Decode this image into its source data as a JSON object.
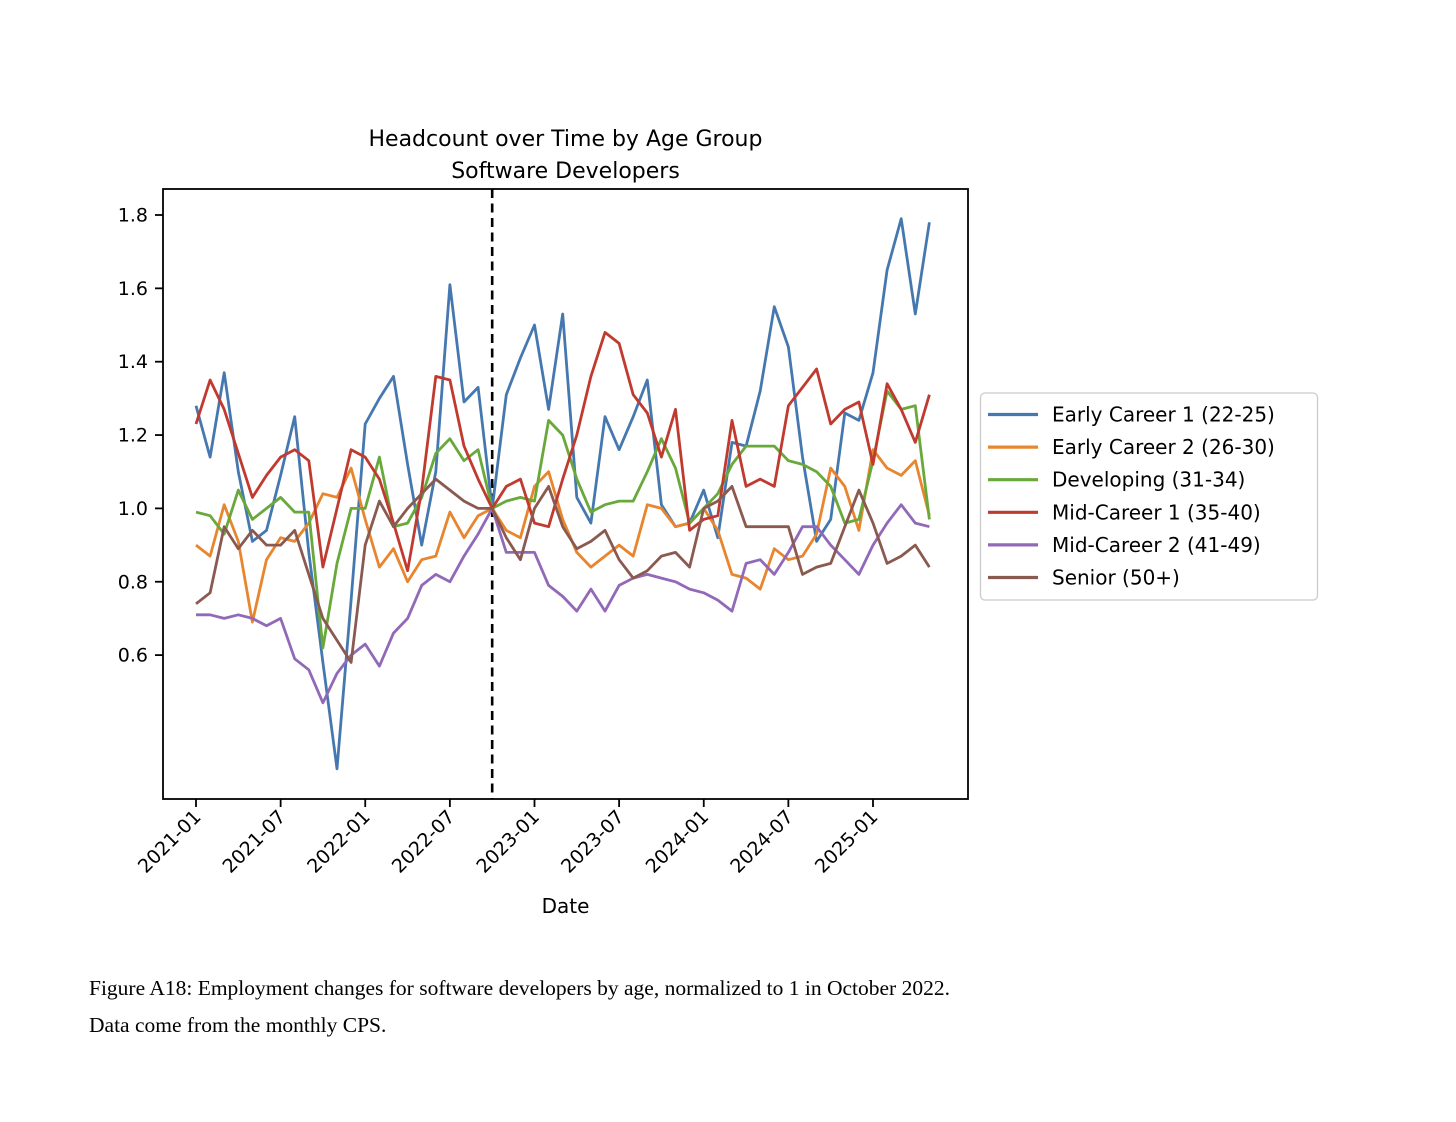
{
  "figure": {
    "title_line1": "Headcount over Time by Age Group",
    "title_line2": "Software Developers",
    "xlabel": "Date",
    "caption_line1": "Figure A18: Employment changes for software developers by age, normalized to 1 in October 2022.",
    "caption_line2": "Data come from the monthly CPS."
  },
  "chart_data": {
    "type": "line",
    "title": "Headcount over Time by Age Group",
    "subtitle": "Software Developers",
    "xlabel": "Date",
    "ylabel": "",
    "grid": false,
    "legend_position": "right-outside",
    "ylim": [
      0.2,
      1.87
    ],
    "y_ticks": [
      0.6,
      0.8,
      1.0,
      1.2,
      1.4,
      1.6,
      1.8
    ],
    "x_tick_labels": [
      "2021-01",
      "2021-07",
      "2022-01",
      "2022-07",
      "2023-01",
      "2023-07",
      "2024-01",
      "2024-07",
      "2025-01"
    ],
    "normalization_line": {
      "x": "2022-10",
      "value": 1.0,
      "style": "dashed",
      "color": "#000000"
    },
    "x": [
      "2021-01",
      "2021-02",
      "2021-03",
      "2021-04",
      "2021-05",
      "2021-06",
      "2021-07",
      "2021-08",
      "2021-09",
      "2021-10",
      "2021-11",
      "2021-12",
      "2022-01",
      "2022-02",
      "2022-03",
      "2022-04",
      "2022-05",
      "2022-06",
      "2022-07",
      "2022-08",
      "2022-09",
      "2022-10",
      "2022-11",
      "2022-12",
      "2023-01",
      "2023-02",
      "2023-03",
      "2023-04",
      "2023-05",
      "2023-06",
      "2023-07",
      "2023-08",
      "2023-09",
      "2023-10",
      "2023-11",
      "2023-12",
      "2024-01",
      "2024-02",
      "2024-03",
      "2024-04",
      "2024-05",
      "2024-06",
      "2024-07",
      "2024-08",
      "2024-09",
      "2024-10",
      "2024-11",
      "2024-12",
      "2025-01",
      "2025-02",
      "2025-03",
      "2025-04",
      "2025-05"
    ],
    "series": [
      {
        "name": "Early Career 1 (22-25)",
        "color": "#4678b0",
        "values": [
          1.28,
          1.14,
          1.37,
          1.1,
          0.91,
          0.94,
          1.09,
          1.25,
          0.88,
          0.58,
          0.29,
          0.75,
          1.23,
          1.3,
          1.36,
          1.12,
          0.9,
          1.1,
          1.61,
          1.29,
          1.33,
          1.0,
          1.31,
          1.41,
          1.5,
          1.27,
          1.53,
          1.03,
          0.96,
          1.25,
          1.16,
          1.25,
          1.35,
          1.01,
          0.95,
          0.96,
          1.05,
          0.92,
          1.18,
          1.17,
          1.32,
          1.55,
          1.44,
          1.14,
          0.91,
          0.97,
          1.26,
          1.24,
          1.37,
          1.65,
          1.79,
          1.53,
          1.78
        ]
      },
      {
        "name": "Early Career 2 (26-30)",
        "color": "#e8852f",
        "values": [
          0.9,
          0.87,
          1.01,
          0.91,
          0.69,
          0.86,
          0.92,
          0.91,
          0.96,
          1.04,
          1.03,
          1.11,
          0.97,
          0.84,
          0.89,
          0.8,
          0.86,
          0.87,
          0.99,
          0.92,
          0.98,
          1.0,
          0.94,
          0.92,
          1.06,
          1.1,
          0.97,
          0.88,
          0.84,
          0.87,
          0.9,
          0.87,
          1.01,
          1.0,
          0.95,
          0.96,
          1.0,
          0.94,
          0.82,
          0.81,
          0.78,
          0.89,
          0.86,
          0.87,
          0.93,
          1.11,
          1.06,
          0.94,
          1.16,
          1.11,
          1.09,
          1.13,
          0.98
        ]
      },
      {
        "name": "Developing (31-34)",
        "color": "#69a83b",
        "values": [
          0.99,
          0.98,
          0.93,
          1.05,
          0.97,
          1.0,
          1.03,
          0.99,
          0.99,
          0.62,
          0.85,
          1.0,
          1.0,
          1.14,
          0.95,
          0.96,
          1.03,
          1.15,
          1.19,
          1.13,
          1.16,
          1.0,
          1.02,
          1.03,
          1.02,
          1.24,
          1.2,
          1.08,
          0.99,
          1.01,
          1.02,
          1.02,
          1.1,
          1.19,
          1.11,
          0.96,
          1.0,
          1.04,
          1.12,
          1.17,
          1.17,
          1.17,
          1.13,
          1.12,
          1.1,
          1.06,
          0.96,
          0.97,
          1.13,
          1.32,
          1.27,
          1.28,
          0.97
        ]
      },
      {
        "name": "Mid-Career 1 (35-40)",
        "color": "#c03a30",
        "values": [
          1.23,
          1.35,
          1.27,
          1.15,
          1.03,
          1.09,
          1.14,
          1.16,
          1.13,
          0.84,
          1.0,
          1.16,
          1.14,
          1.08,
          0.96,
          0.83,
          1.05,
          1.36,
          1.35,
          1.17,
          1.08,
          1.0,
          1.06,
          1.08,
          0.96,
          0.95,
          1.08,
          1.2,
          1.36,
          1.48,
          1.45,
          1.31,
          1.26,
          1.14,
          1.27,
          0.94,
          0.97,
          0.98,
          1.24,
          1.06,
          1.08,
          1.06,
          1.28,
          1.33,
          1.38,
          1.23,
          1.27,
          1.29,
          1.12,
          1.34,
          1.27,
          1.18,
          1.31
        ]
      },
      {
        "name": "Mid-Career 2 (41-49)",
        "color": "#9169b8",
        "values": [
          0.71,
          0.71,
          0.7,
          0.71,
          0.7,
          0.68,
          0.7,
          0.59,
          0.56,
          0.47,
          0.55,
          0.6,
          0.63,
          0.57,
          0.66,
          0.7,
          0.79,
          0.82,
          0.8,
          0.87,
          0.93,
          1.0,
          0.88,
          0.88,
          0.88,
          0.79,
          0.76,
          0.72,
          0.78,
          0.72,
          0.79,
          0.81,
          0.82,
          0.81,
          0.8,
          0.78,
          0.77,
          0.75,
          0.72,
          0.85,
          0.86,
          0.82,
          0.88,
          0.95,
          0.95,
          0.9,
          0.86,
          0.82,
          0.9,
          0.96,
          1.01,
          0.96,
          0.95
        ]
      },
      {
        "name": "Senior (50+)",
        "color": "#8a5a50",
        "values": [
          0.74,
          0.77,
          0.95,
          0.89,
          0.94,
          0.9,
          0.9,
          0.94,
          0.82,
          0.7,
          0.64,
          0.58,
          0.9,
          1.02,
          0.95,
          1.0,
          1.04,
          1.08,
          1.05,
          1.02,
          1.0,
          1.0,
          0.92,
          0.86,
          1.0,
          1.06,
          0.95,
          0.89,
          0.91,
          0.94,
          0.86,
          0.81,
          0.83,
          0.87,
          0.88,
          0.84,
          1.0,
          1.02,
          1.06,
          0.95,
          0.95,
          0.95,
          0.95,
          0.82,
          0.84,
          0.85,
          0.95,
          1.05,
          0.96,
          0.85,
          0.87,
          0.9,
          0.84
        ]
      }
    ]
  }
}
